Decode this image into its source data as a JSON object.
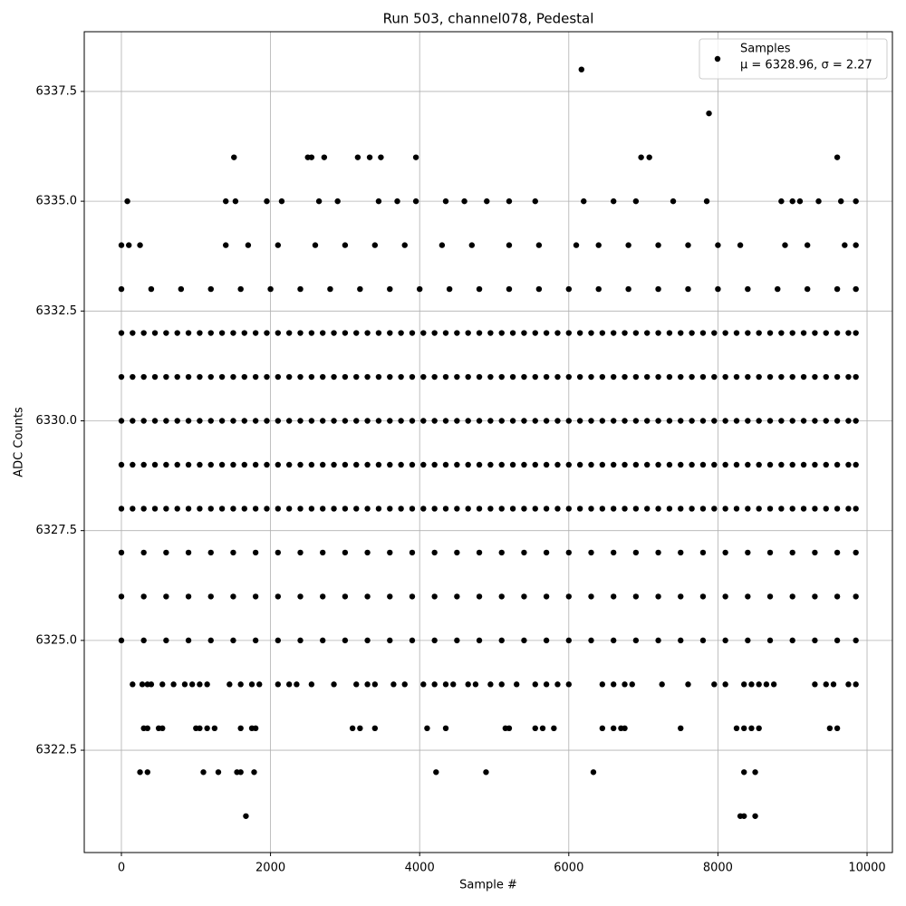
{
  "chart_data": {
    "type": "scatter",
    "title": "Run 503, channel078, Pedestal",
    "x_label": "Sample #",
    "y_label": "ADC Counts",
    "xlim": [
      -498,
      10340
    ],
    "ylim": [
      6320.17,
      6338.86
    ],
    "xticks": [
      0,
      2000,
      4000,
      6000,
      8000,
      10000
    ],
    "yticks": [
      6322.5,
      {
        "value": 6325,
        "label": "6325.0"
      },
      6327.5,
      {
        "value": 6330,
        "label": "6330.0"
      },
      6332.5,
      {
        "value": 6335,
        "label": "6335.0"
      },
      6337.5
    ],
    "grid": true,
    "legend": "upper right",
    "annotation": "μ = 6328.96, σ = 2.27",
    "x": [
      0,
      150,
      300,
      450,
      600,
      750,
      900,
      1050,
      1200,
      1350,
      1500,
      1650,
      1800,
      1950,
      2100,
      2250,
      2400,
      2550,
      2700,
      2850,
      3000,
      3150,
      3300,
      3450,
      3600,
      3750,
      3900,
      4050,
      4200,
      4350,
      4500,
      4650,
      4800,
      4950,
      5100,
      5250,
      5400,
      5550,
      5700,
      5850,
      6000,
      6150,
      6300,
      6450,
      6600,
      6750,
      6900,
      7050,
      7200,
      7350,
      7500,
      7650,
      7800,
      7950,
      8100,
      8250,
      8400,
      8550,
      8700,
      8850,
      9000,
      9150,
      9300,
      9450,
      9600,
      9750,
      9850,
      0,
      150,
      300,
      450,
      600,
      750,
      900,
      1050,
      1200,
      1350,
      1500,
      1650,
      1800,
      1950,
      2100,
      2250,
      2400,
      2550,
      2700,
      2850,
      3000,
      3150,
      3300,
      3450,
      3600,
      3750,
      3900,
      4050,
      4200,
      4350,
      4500,
      4650,
      4800,
      4950,
      5100,
      5250,
      5400,
      5550,
      5700,
      5850,
      6000,
      6150,
      6300,
      6450,
      6600,
      6750,
      6900,
      7050,
      7200,
      7350,
      7500,
      7650,
      7800,
      7950,
      8100,
      8250,
      8400,
      8550,
      8700,
      8850,
      9000,
      9150,
      9300,
      9450,
      9600,
      9750,
      9850,
      0,
      150,
      300,
      450,
      600,
      750,
      900,
      1050,
      1200,
      1350,
      1500,
      1650,
      1800,
      1950,
      2100,
      2250,
      2400,
      2550,
      2700,
      2850,
      3000,
      3150,
      3300,
      3450,
      3600,
      3750,
      3900,
      4050,
      4200,
      4350,
      4500,
      4650,
      4800,
      4950,
      5100,
      5250,
      5400,
      5550,
      5700,
      5850,
      6000,
      6150,
      6300,
      6450,
      6600,
      6750,
      6900,
      7050,
      7200,
      7350,
      7500,
      7650,
      7800,
      7950,
      8100,
      8250,
      8400,
      8550,
      8700,
      8850,
      9000,
      9150,
      9300,
      9450,
      9600,
      9750,
      9850,
      0,
      150,
      300,
      450,
      600,
      750,
      900,
      1050,
      1200,
      1350,
      1500,
      1650,
      1800,
      1950,
      2100,
      2250,
      2400,
      2550,
      2700,
      2850,
      3000,
      3150,
      3300,
      3450,
      3600,
      3750,
      3900,
      4050,
      4200,
      4350,
      4500,
      4650,
      4800,
      4950,
      5100,
      5250,
      5400,
      5550,
      5700,
      5850,
      6000,
      6150,
      6300,
      6450,
      6600,
      6750,
      6900,
      7050,
      7200,
      7350,
      7500,
      7650,
      7800,
      7950,
      8100,
      8250,
      8400,
      8550,
      8700,
      8850,
      9000,
      9150,
      9300,
      9450,
      9600,
      9750,
      9850,
      0,
      150,
      300,
      450,
      600,
      750,
      900,
      1050,
      1200,
      1350,
      1500,
      1650,
      1800,
      1950,
      2100,
      2250,
      2400,
      2550,
      2700,
      2850,
      3000,
      3150,
      3300,
      3450,
      3600,
      3750,
      3900,
      4050,
      4200,
      4350,
      4500,
      4650,
      4800,
      4950,
      5100,
      5250,
      5400,
      5550,
      5700,
      5850,
      6000,
      6150,
      6300,
      6450,
      6600,
      6750,
      6900,
      7050,
      7200,
      7350,
      7500,
      7650,
      7800,
      7950,
      8100,
      8250,
      8400,
      8550,
      8700,
      8850,
      9000,
      9150,
      9300,
      9450,
      9600,
      9750,
      9850,
      0,
      300,
      600,
      900,
      1200,
      1500,
      1800,
      2100,
      2400,
      2700,
      3000,
      3300,
      3600,
      3900,
      4200,
      4500,
      4800,
      5100,
      5400,
      5700,
      6000,
      6300,
      6600,
      6900,
      7200,
      7500,
      7800,
      8100,
      8400,
      8700,
      9000,
      9300,
      9600,
      9850,
      0,
      300,
      600,
      900,
      1200,
      1500,
      1800,
      2100,
      2400,
      2700,
      3000,
      3300,
      3600,
      3900,
      4200,
      4500,
      4800,
      5100,
      5400,
      5700,
      6000,
      6300,
      6600,
      6900,
      7200,
      7500,
      7800,
      8100,
      8400,
      8700,
      9000,
      9300,
      9600,
      9850,
      0,
      300,
      600,
      900,
      1200,
      1500,
      1800,
      2100,
      2400,
      2700,
      3000,
      3300,
      3600,
      3900,
      4200,
      4500,
      4800,
      5100,
      5400,
      5700,
      6000,
      6300,
      6600,
      6900,
      7200,
      7500,
      7800,
      8100,
      8400,
      8700,
      9000,
      9300,
      9600,
      9850,
      0,
      400,
      800,
      1200,
      1600,
      2000,
      2400,
      2800,
      3200,
      3600,
      4000,
      4400,
      4800,
      5200,
      5600,
      6000,
      6400,
      6800,
      7200,
      7600,
      8000,
      8400,
      8800,
      9200,
      9600,
      9850,
      0,
      100,
      250,
      1400,
      1700,
      2100,
      2600,
      3000,
      3400,
      3800,
      4300,
      4700,
      5200,
      5600,
      6100,
      6400,
      6800,
      7200,
      7600,
      8000,
      8300,
      8900,
      9200,
      9700,
      9850,
      80,
      1400,
      1530,
      1950,
      2150,
      2650,
      2900,
      3450,
      3700,
      3950,
      4350,
      4600,
      4900,
      5200,
      5550,
      6200,
      6600,
      6900,
      7400,
      7850,
      8850,
      9000,
      9100,
      9350,
      9650,
      9850,
      1510,
      2500,
      2550,
      2720,
      3170,
      3330,
      3480,
      3950,
      6970,
      7080,
      9600,
      7880,
      6170,
      150,
      280,
      350,
      400,
      550,
      700,
      850,
      950,
      1050,
      1150,
      1450,
      1600,
      1750,
      1850,
      2100,
      2250,
      2350,
      2550,
      2850,
      3150,
      3300,
      3400,
      3650,
      3800,
      4050,
      4200,
      4350,
      4450,
      4650,
      4750,
      4950,
      5100,
      5300,
      5550,
      5700,
      5850,
      6000,
      6450,
      6600,
      6750,
      6850,
      7250,
      7600,
      7950,
      8100,
      8350,
      8450,
      8550,
      8650,
      8750,
      9300,
      9450,
      9550,
      9750,
      9850,
      300,
      350,
      500,
      550,
      1000,
      1050,
      1150,
      1250,
      1600,
      1750,
      1800,
      3100,
      3200,
      3400,
      4100,
      4350,
      5150,
      5200,
      5550,
      5650,
      5800,
      6450,
      6600,
      6700,
      6750,
      7500,
      8250,
      8350,
      8450,
      8550,
      9500,
      9600,
      250,
      350,
      1100,
      1300,
      1550,
      1600,
      1780,
      4220,
      4890,
      6330,
      8350,
      8500,
      1670,
      8300,
      8350,
      8500
    ],
    "series": [
      {
        "name": "Samples",
        "color": "#000000",
        "values": [
          6328,
          6328,
          6328,
          6328,
          6328,
          6328,
          6328,
          6328,
          6328,
          6328,
          6328,
          6328,
          6328,
          6328,
          6328,
          6328,
          6328,
          6328,
          6328,
          6328,
          6328,
          6328,
          6328,
          6328,
          6328,
          6328,
          6328,
          6328,
          6328,
          6328,
          6328,
          6328,
          6328,
          6328,
          6328,
          6328,
          6328,
          6328,
          6328,
          6328,
          6328,
          6328,
          6328,
          6328,
          6328,
          6328,
          6328,
          6328,
          6328,
          6328,
          6328,
          6328,
          6328,
          6328,
          6328,
          6328,
          6328,
          6328,
          6328,
          6328,
          6328,
          6328,
          6328,
          6328,
          6328,
          6328,
          6328,
          6329,
          6329,
          6329,
          6329,
          6329,
          6329,
          6329,
          6329,
          6329,
          6329,
          6329,
          6329,
          6329,
          6329,
          6329,
          6329,
          6329,
          6329,
          6329,
          6329,
          6329,
          6329,
          6329,
          6329,
          6329,
          6329,
          6329,
          6329,
          6329,
          6329,
          6329,
          6329,
          6329,
          6329,
          6329,
          6329,
          6329,
          6329,
          6329,
          6329,
          6329,
          6329,
          6329,
          6329,
          6329,
          6329,
          6329,
          6329,
          6329,
          6329,
          6329,
          6329,
          6329,
          6329,
          6329,
          6329,
          6329,
          6329,
          6329,
          6329,
          6329,
          6329,
          6329,
          6329,
          6329,
          6329,
          6329,
          6330,
          6330,
          6330,
          6330,
          6330,
          6330,
          6330,
          6330,
          6330,
          6330,
          6330,
          6330,
          6330,
          6330,
          6330,
          6330,
          6330,
          6330,
          6330,
          6330,
          6330,
          6330,
          6330,
          6330,
          6330,
          6330,
          6330,
          6330,
          6330,
          6330,
          6330,
          6330,
          6330,
          6330,
          6330,
          6330,
          6330,
          6330,
          6330,
          6330,
          6330,
          6330,
          6330,
          6330,
          6330,
          6330,
          6330,
          6330,
          6330,
          6330,
          6330,
          6330,
          6330,
          6330,
          6330,
          6330,
          6330,
          6330,
          6330,
          6330,
          6330,
          6330,
          6330,
          6330,
          6330,
          6330,
          6330,
          6331,
          6331,
          6331,
          6331,
          6331,
          6331,
          6331,
          6331,
          6331,
          6331,
          6331,
          6331,
          6331,
          6331,
          6331,
          6331,
          6331,
          6331,
          6331,
          6331,
          6331,
          6331,
          6331,
          6331,
          6331,
          6331,
          6331,
          6331,
          6331,
          6331,
          6331,
          6331,
          6331,
          6331,
          6331,
          6331,
          6331,
          6331,
          6331,
          6331,
          6331,
          6331,
          6331,
          6331,
          6331,
          6331,
          6331,
          6331,
          6331,
          6331,
          6331,
          6331,
          6331,
          6331,
          6331,
          6331,
          6331,
          6331,
          6331,
          6331,
          6331,
          6331,
          6331,
          6331,
          6331,
          6331,
          6331,
          6332,
          6332,
          6332,
          6332,
          6332,
          6332,
          6332,
          6332,
          6332,
          6332,
          6332,
          6332,
          6332,
          6332,
          6332,
          6332,
          6332,
          6332,
          6332,
          6332,
          6332,
          6332,
          6332,
          6332,
          6332,
          6332,
          6332,
          6332,
          6332,
          6332,
          6332,
          6332,
          6332,
          6332,
          6332,
          6332,
          6332,
          6332,
          6332,
          6332,
          6332,
          6332,
          6332,
          6332,
          6332,
          6332,
          6332,
          6332,
          6332,
          6332,
          6332,
          6332,
          6332,
          6332,
          6332,
          6332,
          6332,
          6332,
          6332,
          6332,
          6332,
          6332,
          6332,
          6332,
          6332,
          6332,
          6332,
          6327,
          6327,
          6327,
          6327,
          6327,
          6327,
          6327,
          6327,
          6327,
          6327,
          6327,
          6327,
          6327,
          6327,
          6327,
          6327,
          6327,
          6327,
          6327,
          6327,
          6327,
          6327,
          6327,
          6327,
          6327,
          6327,
          6327,
          6327,
          6327,
          6327,
          6327,
          6327,
          6327,
          6327,
          6326,
          6326,
          6326,
          6326,
          6326,
          6326,
          6326,
          6326,
          6326,
          6326,
          6326,
          6326,
          6326,
          6326,
          6326,
          6326,
          6326,
          6326,
          6326,
          6326,
          6326,
          6326,
          6326,
          6326,
          6326,
          6326,
          6326,
          6326,
          6326,
          6326,
          6326,
          6326,
          6326,
          6326,
          6325,
          6325,
          6325,
          6325,
          6325,
          6325,
          6325,
          6325,
          6325,
          6325,
          6325,
          6325,
          6325,
          6325,
          6325,
          6325,
          6325,
          6325,
          6325,
          6325,
          6325,
          6325,
          6325,
          6325,
          6325,
          6325,
          6325,
          6325,
          6325,
          6325,
          6325,
          6325,
          6325,
          6325,
          6333,
          6333,
          6333,
          6333,
          6333,
          6333,
          6333,
          6333,
          6333,
          6333,
          6333,
          6333,
          6333,
          6333,
          6333,
          6333,
          6333,
          6333,
          6333,
          6333,
          6333,
          6333,
          6333,
          6333,
          6333,
          6333,
          6334,
          6334,
          6334,
          6334,
          6334,
          6334,
          6334,
          6334,
          6334,
          6334,
          6334,
          6334,
          6334,
          6334,
          6334,
          6334,
          6334,
          6334,
          6334,
          6334,
          6334,
          6334,
          6334,
          6334,
          6334,
          6335,
          6335,
          6335,
          6335,
          6335,
          6335,
          6335,
          6335,
          6335,
          6335,
          6335,
          6335,
          6335,
          6335,
          6335,
          6335,
          6335,
          6335,
          6335,
          6335,
          6335,
          6335,
          6335,
          6335,
          6335,
          6335,
          6336,
          6336,
          6336,
          6336,
          6336,
          6336,
          6336,
          6336,
          6336,
          6336,
          6336,
          6337,
          6338,
          6324,
          6324,
          6324,
          6324,
          6324,
          6324,
          6324,
          6324,
          6324,
          6324,
          6324,
          6324,
          6324,
          6324,
          6324,
          6324,
          6324,
          6324,
          6324,
          6324,
          6324,
          6324,
          6324,
          6324,
          6324,
          6324,
          6324,
          6324,
          6324,
          6324,
          6324,
          6324,
          6324,
          6324,
          6324,
          6324,
          6324,
          6324,
          6324,
          6324,
          6324,
          6324,
          6324,
          6324,
          6324,
          6324,
          6324,
          6324,
          6324,
          6324,
          6324,
          6324,
          6324,
          6324,
          6324,
          6323,
          6323,
          6323,
          6323,
          6323,
          6323,
          6323,
          6323,
          6323,
          6323,
          6323,
          6323,
          6323,
          6323,
          6323,
          6323,
          6323,
          6323,
          6323,
          6323,
          6323,
          6323,
          6323,
          6323,
          6323,
          6323,
          6323,
          6323,
          6323,
          6323,
          6323,
          6323,
          6322,
          6322,
          6322,
          6322,
          6322,
          6322,
          6322,
          6322,
          6322,
          6322,
          6322,
          6322,
          6321,
          6321,
          6321,
          6321
        ]
      }
    ]
  }
}
